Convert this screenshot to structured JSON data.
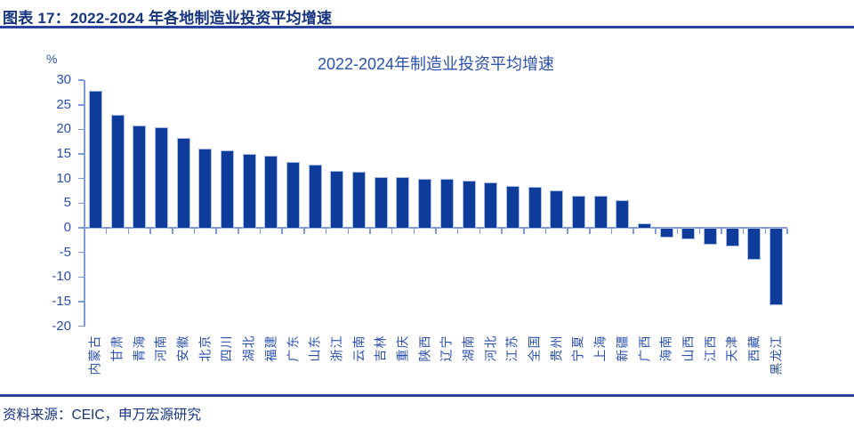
{
  "header": {
    "title": "图表 17：2022-2024 年各地制造业投资平均增速"
  },
  "footer": {
    "source": "资料来源：CEIC，申万宏源研究"
  },
  "chart_data": {
    "type": "bar",
    "title": "2022-2024年制造业投资平均增速",
    "unit_label": "%",
    "xlabel": "",
    "ylabel": "%",
    "categories": [
      "内蒙古",
      "甘肃",
      "青海",
      "河南",
      "安徽",
      "北京",
      "四川",
      "湖北",
      "福建",
      "广东",
      "山东",
      "浙江",
      "云南",
      "吉林",
      "重庆",
      "陕西",
      "辽宁",
      "湖南",
      "河北",
      "江苏",
      "全国",
      "贵州",
      "宁夏",
      "上海",
      "新疆",
      "广西",
      "海南",
      "山西",
      "江西",
      "天津",
      "西藏",
      "黑龙江"
    ],
    "values": [
      27.6,
      22.7,
      20.7,
      20.2,
      18.1,
      15.9,
      15.6,
      14.8,
      14.4,
      13.2,
      12.6,
      11.4,
      11.2,
      10.2,
      10.1,
      9.8,
      9.7,
      9.4,
      9.1,
      8.4,
      8.2,
      7.5,
      6.4,
      6.3,
      5.5,
      0.8,
      -1.6,
      -2.0,
      -3.1,
      -3.5,
      -6.2,
      -15.3
    ],
    "ylim": [
      -20,
      30
    ],
    "yticks": [
      30,
      25,
      20,
      15,
      10,
      5,
      0,
      -5,
      -10,
      -15,
      -20
    ],
    "grid": false,
    "legend_position": "none",
    "bar_color": "#0d3c9b",
    "bar_edge_color": "#aabde6",
    "axis_color": "#7f9ad6",
    "tick_label_color": "#2b51b0",
    "title_color": "#2b51b0",
    "header_color": "#16357e"
  }
}
